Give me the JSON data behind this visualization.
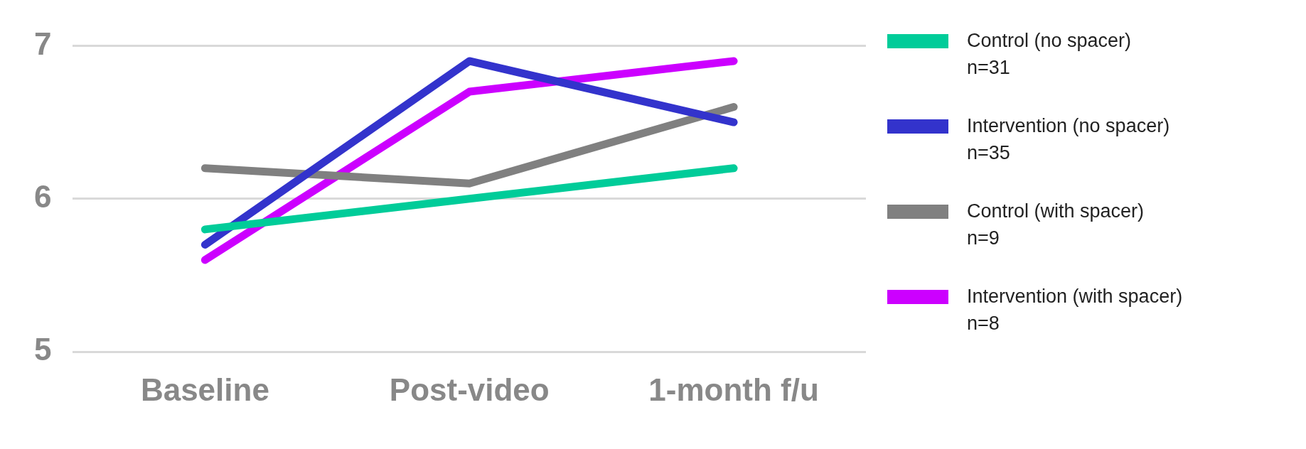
{
  "chart_data": {
    "type": "line",
    "categories": [
      "Baseline",
      "Post-video",
      "1-month f/u"
    ],
    "series": [
      {
        "name": "Control (no spacer)\nn=31",
        "color": "#00cc99",
        "values": [
          5.8,
          6.0,
          6.2
        ]
      },
      {
        "name": "Intervention (no spacer)\nn=35",
        "color": "#3333cc",
        "values": [
          5.7,
          6.9,
          6.5
        ]
      },
      {
        "name": "Control (with spacer)\nn=9",
        "color": "#808080",
        "values": [
          6.2,
          6.1,
          6.6
        ]
      },
      {
        "name": "Intervention (with spacer)\nn=8",
        "color": "#cc00ff",
        "values": [
          5.6,
          6.7,
          6.9
        ]
      }
    ],
    "ylim": [
      5,
      7
    ],
    "yticks": [
      5,
      6,
      7
    ],
    "grid": "y",
    "legend": "right",
    "marker": "none",
    "line_style": "solid"
  }
}
